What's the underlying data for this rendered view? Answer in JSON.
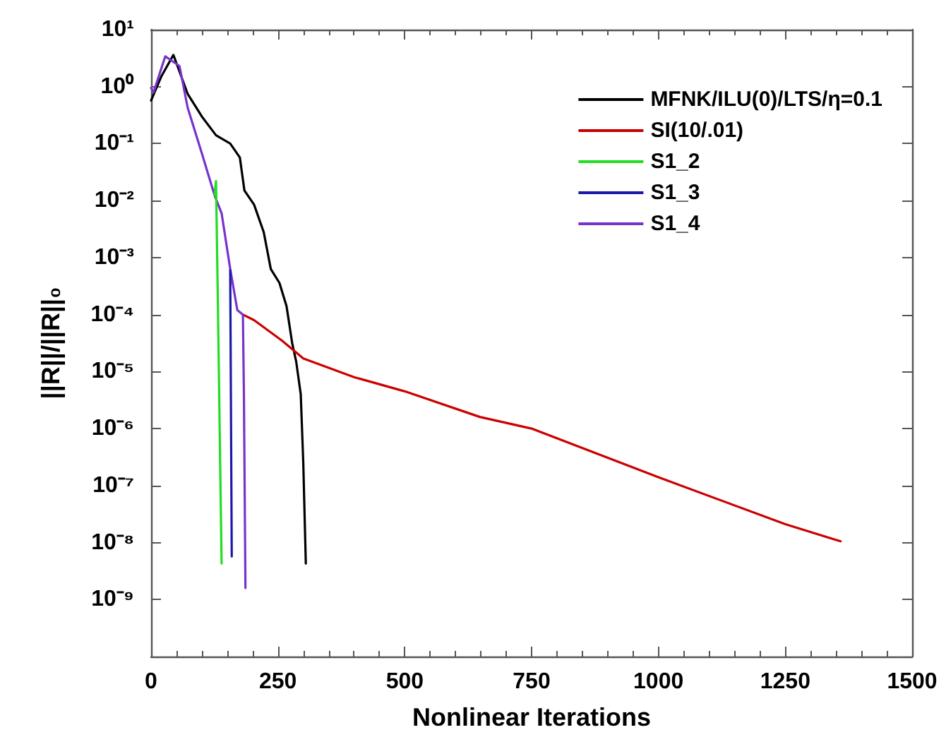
{
  "chart_data": {
    "type": "line",
    "xlabel": "Nonlinear Iterations",
    "ylabel": "||R||/||R||₀",
    "xlim": [
      0,
      1500
    ],
    "xticks": [
      0,
      250,
      500,
      750,
      1000,
      1250,
      1500
    ],
    "ylim": [
      1e-10,
      10
    ],
    "yticks": [
      {
        "value": 1e-09,
        "label": "10⁻⁹"
      },
      {
        "value": 1e-08,
        "label": "10⁻⁸"
      },
      {
        "value": 1e-07,
        "label": "10⁻⁷"
      },
      {
        "value": 1e-06,
        "label": "10⁻⁶"
      },
      {
        "value": 1e-05,
        "label": "10⁻⁵"
      },
      {
        "value": 0.0001,
        "label": "10⁻⁴"
      },
      {
        "value": 0.001,
        "label": "10⁻³"
      },
      {
        "value": 0.01,
        "label": "10⁻²"
      },
      {
        "value": 0.1,
        "label": "10⁻¹"
      },
      {
        "value": 1,
        "label": "10⁰"
      },
      {
        "value": 10,
        "label": "10¹"
      }
    ],
    "log": "y",
    "grid": false,
    "legend": "top right",
    "marker": "none",
    "line_style": "solid",
    "series": [
      {
        "name": "MFNK/ILU(0)/LTS/η=0.1",
        "color": "#000000",
        "x": [
          0,
          20,
          44,
          72,
          100,
          128,
          156,
          175,
          184,
          203,
          222,
          236,
          253,
          267,
          278,
          286,
          295,
          300,
          305
        ],
        "values": [
          0.57,
          1.5,
          3.6,
          0.75,
          0.3,
          0.14,
          0.1,
          0.057,
          0.015,
          0.0085,
          0.0028,
          0.00063,
          0.00036,
          0.00014,
          3.2e-05,
          1.5e-05,
          4e-06,
          2.5e-07,
          4.3e-09
        ]
      },
      {
        "name": "SI(10/.01)",
        "color": "#cc0000",
        "x": [
          181,
          203,
          258,
          300,
          400,
          500,
          648,
          750,
          1000,
          1250,
          1359
        ],
        "values": [
          0.0001,
          8e-05,
          3.5e-05,
          1.7e-05,
          8e-06,
          4.5e-06,
          1.6e-06,
          1e-06,
          1.4e-07,
          2.1e-08,
          1.05e-08
        ]
      },
      {
        "name": "S1_2",
        "color": "#22dd22",
        "x": [
          125,
          128,
          132,
          139
        ],
        "values": [
          0.0125,
          0.022,
          0.0001,
          4.3e-09
        ]
      },
      {
        "name": "S1_3",
        "color": "#1a1aaa",
        "x": [
          156,
          159
        ],
        "values": [
          0.0006,
          5.7e-09
        ]
      },
      {
        "name": "S1_4",
        "color": "#7733cc",
        "x": [
          0,
          5,
          28,
          56,
          72,
          100,
          125,
          139,
          156,
          170,
          181,
          183,
          186
        ],
        "values": [
          0.95,
          0.8,
          3.4,
          2.3,
          0.43,
          0.068,
          0.0125,
          0.006,
          0.00063,
          0.00012,
          0.0001,
          4e-06,
          1.6e-09
        ]
      }
    ]
  }
}
